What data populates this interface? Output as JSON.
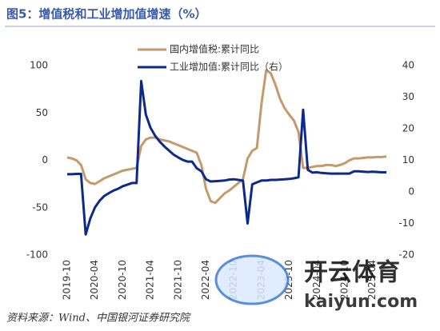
{
  "chart_data": {
    "type": "line",
    "title": "图5：增值税和工业增加值增速（%）",
    "source": "资料来源：Wind、中国银河证券研究院",
    "watermark": [
      "开云体育",
      "kaiyun.com"
    ],
    "categories": [
      "2019-10",
      null,
      null,
      null,
      null,
      null,
      "2020-04",
      null,
      null,
      null,
      null,
      null,
      "2020-10",
      null,
      null,
      null,
      null,
      null,
      "2021-04",
      null,
      null,
      null,
      null,
      null,
      "2021-10",
      null,
      null,
      null,
      null,
      null,
      "2022-04",
      null,
      null,
      null,
      null,
      null,
      "2022-10",
      null,
      null,
      null,
      null,
      null,
      "2023-04",
      null,
      null,
      null,
      null,
      null,
      "2023-10",
      null,
      null,
      null,
      null,
      null,
      "2024-04",
      null,
      null,
      null,
      null,
      null,
      "2024-10",
      null,
      null,
      null,
      null,
      null,
      "2025-04",
      null,
      null,
      null
    ],
    "series": [
      {
        "name": "国内增值税:累计同比",
        "color": "#c49a6c",
        "axis": "y",
        "values": [
          3,
          2,
          0,
          -5,
          -20,
          -24,
          -25,
          -22,
          -19,
          -17,
          -15,
          -13,
          -11,
          -10,
          -9,
          -8,
          15,
          22,
          24,
          24,
          22,
          21,
          20,
          18,
          16,
          14,
          12,
          10,
          8,
          -5,
          -30,
          -43,
          -45,
          -40,
          -35,
          -32,
          -28,
          -24,
          -20,
          2,
          10,
          13,
          60,
          95,
          92,
          80,
          65,
          55,
          48,
          42,
          30,
          -8,
          -8,
          -7,
          -6,
          -6,
          -5,
          -5,
          -6,
          -5,
          -3,
          0,
          2,
          2,
          2.5,
          3,
          3,
          3.5,
          3.5,
          4
        ]
      },
      {
        "name": "工业增加值:累计同比（右）",
        "color": "#0d2a8a",
        "axis": "y2",
        "values": [
          5.6,
          5.6,
          5.7,
          5.7,
          -13.5,
          -8.4,
          -4.9,
          -2.8,
          -1.3,
          -0.4,
          0.4,
          1.0,
          1.8,
          2.3,
          2.8,
          2.8,
          35.1,
          24.5,
          20.3,
          17.8,
          15.9,
          14.4,
          13.1,
          11.8,
          10.9,
          10.1,
          9.6,
          9.6,
          7.5,
          6.5,
          4.0,
          3.3,
          3.4,
          3.5,
          3.6,
          3.9,
          4.0,
          3.8,
          3.6,
          -10,
          2.4,
          3.0,
          3.6,
          3.6,
          3.8,
          3.8,
          3.9,
          4.0,
          4.1,
          4.3,
          4.6,
          26,
          7.0,
          6.1,
          6.2,
          6.0,
          5.9,
          5.8,
          5.8,
          5.8,
          5.8,
          5.8,
          6.5,
          6.5,
          6.4,
          6.3,
          6.4,
          6.3,
          6.2,
          6.2
        ]
      }
    ],
    "ylim": [
      -100,
      100
    ],
    "yticks": [
      -100,
      -50,
      0,
      50,
      100
    ],
    "y2lim": [
      -20,
      40
    ],
    "y2ticks": [
      -20,
      -10,
      0,
      10,
      20,
      30,
      40
    ],
    "grid": false
  }
}
